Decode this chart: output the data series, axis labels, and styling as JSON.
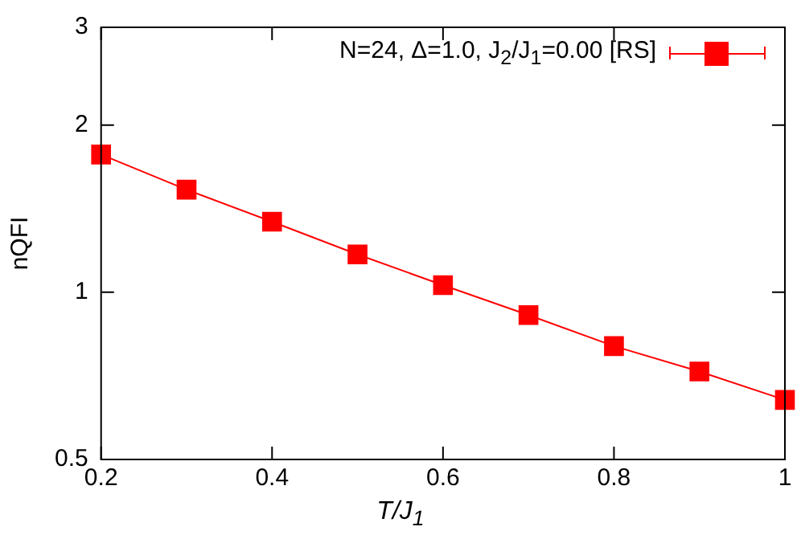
{
  "chart_data": {
    "type": "line",
    "xlabel": "T/J$_{1}$",
    "ylabel": "nQFI",
    "x": [
      0.2,
      0.3,
      0.4,
      0.5,
      0.6,
      0.7,
      0.8,
      0.9,
      1.0
    ],
    "series": [
      {
        "name": "N=24, Δ=1.0, J$_{2}$/J$_{1}$=0.00 [RS]",
        "color": "#ff0000",
        "values": [
          1.77,
          1.53,
          1.34,
          1.17,
          1.03,
          0.91,
          0.8,
          0.72,
          0.64
        ]
      }
    ],
    "xlim": [
      0.2,
      1
    ],
    "xticks": [
      0.2,
      0.4,
      0.6,
      0.8,
      1
    ],
    "ylim": [
      0.5,
      3
    ],
    "yticks": [
      0.5,
      1,
      2,
      3
    ],
    "log": "y",
    "marker": "square",
    "line_style": "solid",
    "legend": "top right",
    "grid": false
  }
}
